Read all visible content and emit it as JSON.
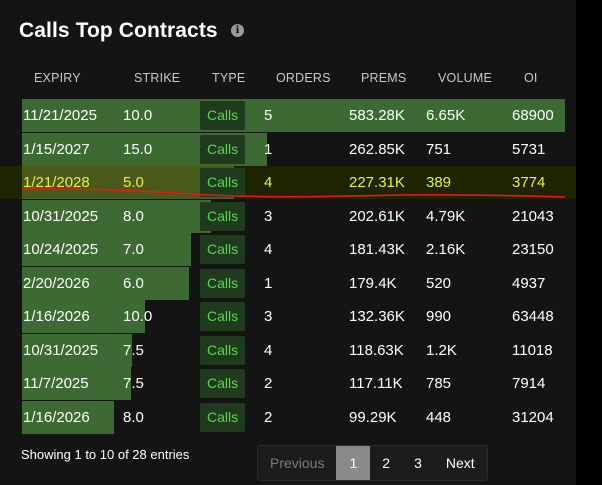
{
  "title": "Calls Top Contracts",
  "info_icon": "info-icon",
  "columns": [
    "EXPIRY",
    "STRIKE",
    "TYPE",
    "ORDERS",
    "PREMS",
    "VOLUME",
    "OI"
  ],
  "rows": [
    {
      "expiry": "11/21/2025",
      "strike": "10.0",
      "type": "Calls",
      "orders": "5",
      "prems": "583.28K",
      "volume": "6.65K",
      "oi": "68900",
      "prems_value": 583.28
    },
    {
      "expiry": "1/15/2027",
      "strike": "15.0",
      "type": "Calls",
      "orders": "1",
      "prems": "262.85K",
      "volume": "751",
      "oi": "5731",
      "prems_value": 262.85
    },
    {
      "expiry": "1/21/2028",
      "strike": "5.0",
      "type": "Calls",
      "orders": "4",
      "prems": "227.31K",
      "volume": "389",
      "oi": "3774",
      "prems_value": 227.31
    },
    {
      "expiry": "10/31/2025",
      "strike": "8.0",
      "type": "Calls",
      "orders": "3",
      "prems": "202.61K",
      "volume": "4.79K",
      "oi": "21043",
      "prems_value": 202.61
    },
    {
      "expiry": "10/24/2025",
      "strike": "7.0",
      "type": "Calls",
      "orders": "4",
      "prems": "181.43K",
      "volume": "2.16K",
      "oi": "23150",
      "prems_value": 181.43
    },
    {
      "expiry": "2/20/2026",
      "strike": "6.0",
      "type": "Calls",
      "orders": "1",
      "prems": "179.4K",
      "volume": "520",
      "oi": "4937",
      "prems_value": 179.4
    },
    {
      "expiry": "1/16/2026",
      "strike": "10.0",
      "type": "Calls",
      "orders": "3",
      "prems": "132.36K",
      "volume": "990",
      "oi": "63448",
      "prems_value": 132.36
    },
    {
      "expiry": "10/31/2025",
      "strike": "7.5",
      "type": "Calls",
      "orders": "4",
      "prems": "118.63K",
      "volume": "1.2K",
      "oi": "11018",
      "prems_value": 118.63
    },
    {
      "expiry": "11/7/2025",
      "strike": "7.5",
      "type": "Calls",
      "orders": "2",
      "prems": "117.11K",
      "volume": "785",
      "oi": "7914",
      "prems_value": 117.11
    },
    {
      "expiry": "1/16/2026",
      "strike": "8.0",
      "type": "Calls",
      "orders": "2",
      "prems": "99.29K",
      "volume": "448",
      "oi": "31204",
      "prems_value": 99.29
    }
  ],
  "highlighted_row": 2,
  "footer": "Showing 1 to 10 of 28 entries",
  "pagination": {
    "previous": "Previous",
    "pages": [
      "1",
      "2",
      "3"
    ],
    "active_page": "1",
    "next": "Next"
  },
  "colors": {
    "bar": "#3c6a32",
    "calls_text": "#58d84c",
    "highlight_text": "#e9f23a",
    "annotation_line": "#e01b1b"
  }
}
